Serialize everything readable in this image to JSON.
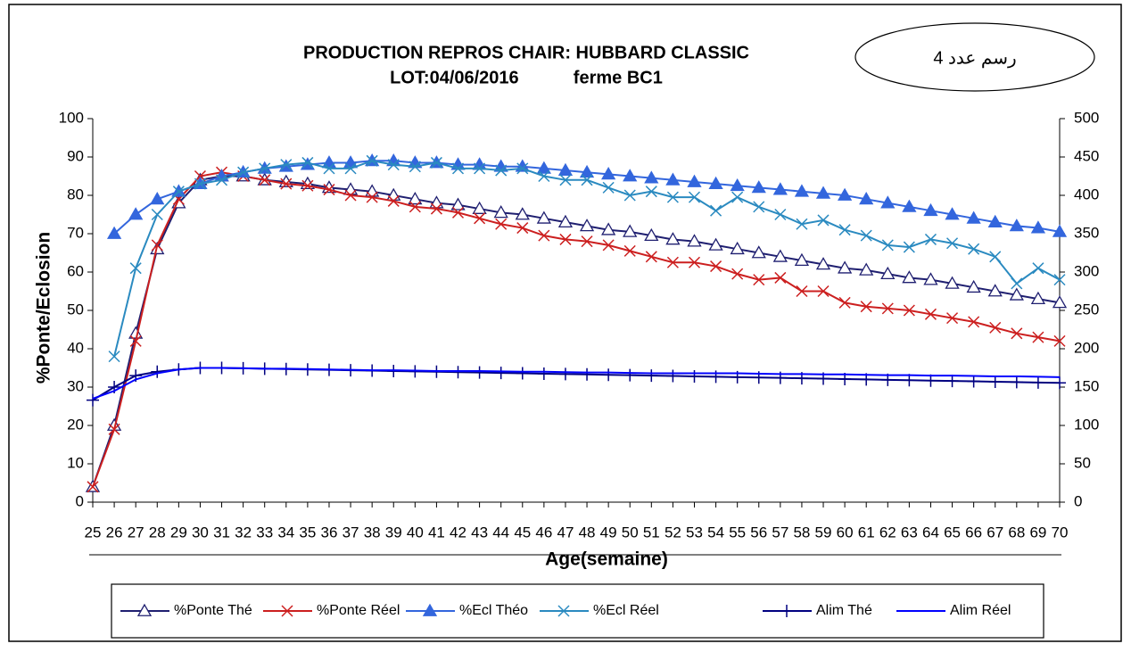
{
  "chart_data": {
    "type": "line",
    "title": "PRODUCTION REPROS CHAIR: HUBBARD CLASSIC",
    "subtitle": "LOT:04/06/2016           ferme BC1",
    "annotation": "رسم عدد 4",
    "xlabel": "Age(semaine)",
    "ylabel": "%Ponte/Eclosion",
    "categories": [
      "25",
      "26",
      "27",
      "28",
      "29",
      "30",
      "31",
      "32",
      "33",
      "34",
      "35",
      "36",
      "37",
      "38",
      "39",
      "40",
      "41",
      "42",
      "43",
      "44",
      "45",
      "46",
      "47",
      "48",
      "49",
      "50",
      "51",
      "52",
      "53",
      "54",
      "55",
      "56",
      "57",
      "58",
      "59",
      "60",
      "61",
      "62",
      "63",
      "64",
      "65",
      "66",
      "67",
      "68",
      "69",
      "70"
    ],
    "ylim": [
      0,
      100
    ],
    "yticks": [
      0,
      10,
      20,
      30,
      40,
      50,
      60,
      70,
      80,
      90,
      100
    ],
    "y2lim": [
      0,
      500
    ],
    "y2ticks": [
      0,
      50,
      100,
      150,
      200,
      250,
      300,
      350,
      400,
      450,
      500
    ],
    "grid": false,
    "legend": "bottom",
    "series": [
      {
        "name": "%Ponte Thé",
        "color": "#1f1f70",
        "marker": "triangle-open",
        "values": [
          4,
          20,
          44,
          66,
          78,
          84,
          85,
          85,
          84,
          83.5,
          83,
          82,
          81.5,
          81,
          80,
          79,
          78,
          77.5,
          76.5,
          75.5,
          75,
          74,
          73,
          72,
          71,
          70.5,
          69.5,
          68.5,
          68,
          67,
          66,
          65,
          64,
          63,
          62,
          61,
          60.5,
          59.5,
          58.5,
          58,
          57,
          56,
          55,
          54,
          53,
          52
        ]
      },
      {
        "name": "%Ponte Réel",
        "color": "#cc1f1f",
        "marker": "x",
        "values": [
          4,
          19,
          42,
          67,
          79,
          85,
          86,
          85,
          84,
          83,
          82.5,
          81.5,
          80,
          79.5,
          78.5,
          77,
          76.5,
          75.5,
          74,
          72.5,
          71.5,
          69.5,
          68.5,
          68,
          67,
          65.5,
          64,
          62.5,
          62.5,
          61.5,
          59.5,
          58,
          58.5,
          55,
          55,
          52,
          51,
          50.5,
          50,
          49,
          48,
          47,
          45.5,
          44,
          43,
          42
        ]
      },
      {
        "name": "%Ecl Théo",
        "color": "#3366dd",
        "marker": "triangle",
        "values": [
          null,
          70,
          75,
          79,
          81,
          83,
          85,
          86,
          87,
          87.5,
          88,
          88.5,
          88.5,
          89,
          89,
          88.5,
          88.5,
          88,
          88,
          87.5,
          87.5,
          87,
          86.5,
          86,
          85.5,
          85,
          84.5,
          84,
          83.5,
          83,
          82.5,
          82,
          81.5,
          81,
          80.5,
          80,
          79,
          78,
          77,
          76,
          75,
          74,
          73,
          72,
          71.5,
          70.5
        ]
      },
      {
        "name": "%Ecl Réel",
        "color": "#2a8ac0",
        "marker": "x",
        "values": [
          null,
          38,
          61,
          75,
          81,
          83,
          84,
          86,
          87,
          88,
          88.5,
          87,
          87,
          89,
          88,
          87.5,
          88.5,
          87,
          87,
          86.5,
          87,
          85,
          84,
          84,
          82,
          80,
          81,
          79.5,
          79.5,
          76,
          79.5,
          77,
          75,
          72.5,
          73.5,
          71,
          69.5,
          67,
          66.5,
          68.5,
          67.5,
          66,
          64,
          57,
          61,
          58
        ]
      },
      {
        "name": "Alim Thé",
        "color": "#000080",
        "marker": "plus",
        "axis": "y2",
        "values": [
          133,
          150,
          165,
          170,
          173,
          175,
          175,
          174.5,
          174,
          173.5,
          173,
          172.5,
          172,
          171.5,
          171,
          170.5,
          170,
          169.5,
          169,
          168.5,
          168,
          167.5,
          167,
          166.5,
          166,
          165.5,
          165,
          164.5,
          164,
          163.5,
          163,
          162.5,
          162,
          161.5,
          161,
          160.5,
          160,
          159.5,
          159,
          158.5,
          158,
          157.5,
          157,
          156.5,
          156,
          155.5
        ]
      },
      {
        "name": "Alim Réel",
        "color": "#0000ff",
        "marker": "none",
        "axis": "y2",
        "values": [
          135,
          145,
          160,
          168,
          173,
          175,
          175,
          174.5,
          174,
          174,
          173.5,
          173,
          172.5,
          172,
          172,
          171.5,
          171,
          171,
          171,
          170.5,
          170,
          170,
          169.5,
          169,
          169,
          168.5,
          168,
          168,
          168,
          168,
          168,
          167.5,
          167,
          167,
          166.5,
          166.5,
          166,
          165.5,
          165.5,
          165,
          165,
          164.5,
          164,
          164,
          163.5,
          163
        ]
      }
    ]
  }
}
